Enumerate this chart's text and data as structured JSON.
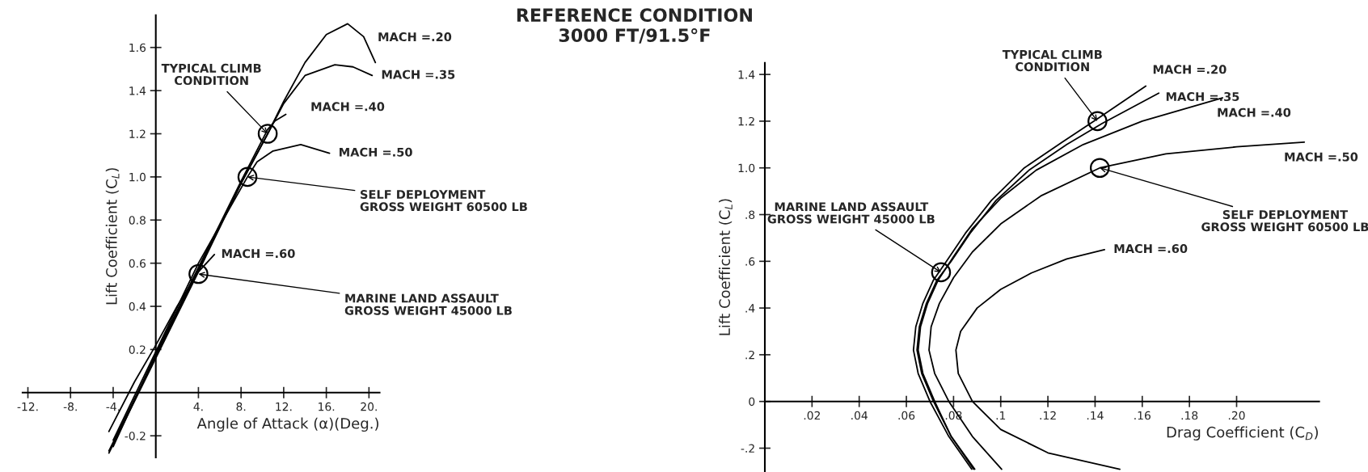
{
  "chart_data": [
    {
      "type": "line",
      "xlabel": "Angle of Attack (α)(Deg.)",
      "ylabel": "Lift Coefficient (C$_{L}$)",
      "xlim": [
        -12.5,
        21
      ],
      "ylim": [
        -0.3,
        1.75
      ],
      "xticks": [
        {
          "value": -12,
          "label": "-12."
        },
        {
          "value": -8,
          "label": "-8."
        },
        {
          "value": -4,
          "label": "-4."
        },
        {
          "value": 4,
          "label": "4."
        },
        {
          "value": 8,
          "label": "8."
        },
        {
          "value": 12,
          "label": "12."
        },
        {
          "value": 16,
          "label": "16."
        },
        {
          "value": 20,
          "label": "20."
        }
      ],
      "yticks": [
        -0.2,
        0.2,
        0.4,
        0.6,
        0.8,
        {
          "value": 1.0,
          "label": "1.0"
        },
        1.2,
        1.4,
        1.6
      ],
      "grid": false,
      "legend": false,
      "line_style": "solid",
      "series": [
        {
          "name": "MACH =.20",
          "color": "#000000",
          "x": [
            -4.4,
            0,
            4,
            8,
            10.5,
            12,
            14,
            16,
            18,
            19.5,
            20.6
          ],
          "values": [
            -0.28,
            0.16,
            0.56,
            0.97,
            1.2,
            1.35,
            1.53,
            1.66,
            1.71,
            1.65,
            1.53
          ]
        },
        {
          "name": "MACH =.35",
          "color": "#000000",
          "x": [
            -4.4,
            0,
            4,
            8,
            10.5,
            12,
            14,
            16.8,
            18.5,
            20.3
          ],
          "values": [
            -0.27,
            0.17,
            0.57,
            0.97,
            1.2,
            1.34,
            1.47,
            1.52,
            1.51,
            1.47
          ]
        },
        {
          "name": "MACH =.40",
          "color": "#000000",
          "x": [
            -4,
            0,
            4,
            8,
            10.5,
            11.2,
            12.2
          ],
          "values": [
            -0.25,
            0.18,
            0.58,
            0.98,
            1.22,
            1.26,
            1.29
          ]
        },
        {
          "name": "MACH =.50",
          "color": "#000000",
          "x": [
            -4,
            0,
            4,
            8.6,
            9.5,
            11,
            13.6,
            16.3
          ],
          "values": [
            -0.22,
            0.19,
            0.6,
            1.0,
            1.07,
            1.12,
            1.15,
            1.11
          ]
        },
        {
          "name": "MACH =.60",
          "color": "#000000",
          "x": [
            -4.4,
            -2,
            0,
            2,
            4,
            5.5
          ],
          "values": [
            -0.18,
            0.05,
            0.22,
            0.4,
            0.56,
            0.64
          ]
        },
        {
          "type": "scatter",
          "marker": "circle",
          "color": "#000000",
          "x": [
            10.5,
            8.6,
            4
          ],
          "values": [
            1.2,
            1.0,
            0.55
          ]
        }
      ],
      "annotations": [
        {
          "text": "TYPICAL CLIMB\nCONDITION",
          "x": 10.5,
          "y": 1.2
        },
        {
          "text": "SELF DEPLOYMENT\nGROSS WEIGHT 60500 LB",
          "x": 8.6,
          "y": 1.0
        },
        {
          "text": "MARINE LAND ASSAULT\nGROSS WEIGHT 45000 LB",
          "x": 4,
          "y": 0.55
        }
      ]
    },
    {
      "type": "line",
      "title": "REFERENCE CONDITION\n3000 FT/91.5°F",
      "xlabel": "Drag Coefficient (C$_{D}$)",
      "ylabel": "Lift Coefficient (C$_{L}$)",
      "xlim": [
        0,
        0.235
      ],
      "ylim": [
        -0.3,
        1.45
      ],
      "xticks": [
        {
          "value": 0.02,
          "label": ".02"
        },
        {
          "value": 0.04,
          "label": ".04"
        },
        {
          "value": 0.06,
          "label": ".06"
        },
        {
          "value": 0.08,
          "label": ".08"
        },
        {
          "value": 0.1,
          "label": ".1"
        },
        {
          "value": 0.12,
          "label": ".12"
        },
        {
          "value": 0.14,
          "label": ".14"
        },
        {
          "value": 0.16,
          "label": ".16"
        },
        {
          "value": 0.18,
          "label": ".18"
        },
        {
          "value": 0.2,
          "label": ".20"
        }
      ],
      "yticks": [
        {
          "value": -0.2,
          "label": "-.2"
        },
        0,
        {
          "value": 0.2,
          "label": ".2"
        },
        {
          "value": 0.4,
          "label": ".4"
        },
        {
          "value": 0.6,
          "label": ".6"
        },
        {
          "value": 0.8,
          "label": ".8"
        },
        {
          "value": 1.0,
          "label": "1.0"
        },
        {
          "value": 1.2,
          "label": "1.2"
        },
        {
          "value": 1.4,
          "label": "1.4"
        }
      ],
      "grid": false,
      "legend": false,
      "line_style": "solid",
      "series": [
        {
          "name": "MACH =.20",
          "color": "#000000",
          "x": [
            0.0877,
            0.078,
            0.07,
            0.065,
            0.063,
            0.064,
            0.067,
            0.0715,
            0.077,
            0.085,
            0.096,
            0.11,
            0.126,
            0.141,
            0.1615
          ],
          "values": [
            -0.29,
            -0.15,
            0,
            0.12,
            0.22,
            0.32,
            0.42,
            0.52,
            0.6,
            0.72,
            0.86,
            1.0,
            1.11,
            1.21,
            1.35
          ]
        },
        {
          "name": "MACH =.35",
          "color": "#000000",
          "x": [
            0.0885,
            0.079,
            0.0715,
            0.0665,
            0.0645,
            0.0655,
            0.0685,
            0.073,
            0.079,
            0.087,
            0.098,
            0.112,
            0.128,
            0.143,
            0.167
          ],
          "values": [
            -0.29,
            -0.15,
            0,
            0.12,
            0.22,
            0.32,
            0.42,
            0.52,
            0.6,
            0.72,
            0.86,
            0.99,
            1.1,
            1.19,
            1.32
          ]
        },
        {
          "name": "MACH =.40",
          "color": "#000000",
          "x": [
            0.089,
            0.079,
            0.072,
            0.067,
            0.065,
            0.066,
            0.069,
            0.0735,
            0.08,
            0.088,
            0.1,
            0.115,
            0.135,
            0.16,
            0.194
          ],
          "values": [
            -0.29,
            -0.15,
            0,
            0.12,
            0.22,
            0.32,
            0.42,
            0.52,
            0.62,
            0.74,
            0.87,
            0.99,
            1.1,
            1.2,
            1.3
          ]
        },
        {
          "name": "MACH =.50",
          "color": "#000000",
          "x": [
            0.1004,
            0.088,
            0.078,
            0.072,
            0.0696,
            0.0705,
            0.074,
            0.08,
            0.088,
            0.1,
            0.117,
            0.142,
            0.17,
            0.2,
            0.2287
          ],
          "values": [
            -0.29,
            -0.15,
            0,
            0.12,
            0.22,
            0.32,
            0.42,
            0.53,
            0.64,
            0.76,
            0.88,
            1.0,
            1.06,
            1.09,
            1.11
          ]
        },
        {
          "name": "MACH =.60",
          "color": "#000000",
          "x": [
            0.1505,
            0.12,
            0.1,
            0.088,
            0.082,
            0.081,
            0.083,
            0.09,
            0.1,
            0.113,
            0.128,
            0.144
          ],
          "values": [
            -0.29,
            -0.22,
            -0.12,
            0,
            0.12,
            0.22,
            0.3,
            0.4,
            0.48,
            0.55,
            0.61,
            0.65
          ]
        },
        {
          "type": "scatter",
          "marker": "circle",
          "color": "#000000",
          "x": [
            0.141,
            0.142,
            0.0747
          ],
          "values": [
            1.2,
            1.0,
            0.553
          ]
        }
      ],
      "annotations": [
        {
          "text": "TYPICAL CLIMB\nCONDITION",
          "x": 0.141,
          "y": 1.2
        },
        {
          "text": "SELF DEPLOYMENT\nGROSS WEIGHT 60500 LB",
          "x": 0.142,
          "y": 1.0
        },
        {
          "text": "MARINE LAND ASSAULT\nGROSS WEIGHT 45000 LB",
          "x": 0.0747,
          "y": 0.553
        }
      ]
    }
  ]
}
